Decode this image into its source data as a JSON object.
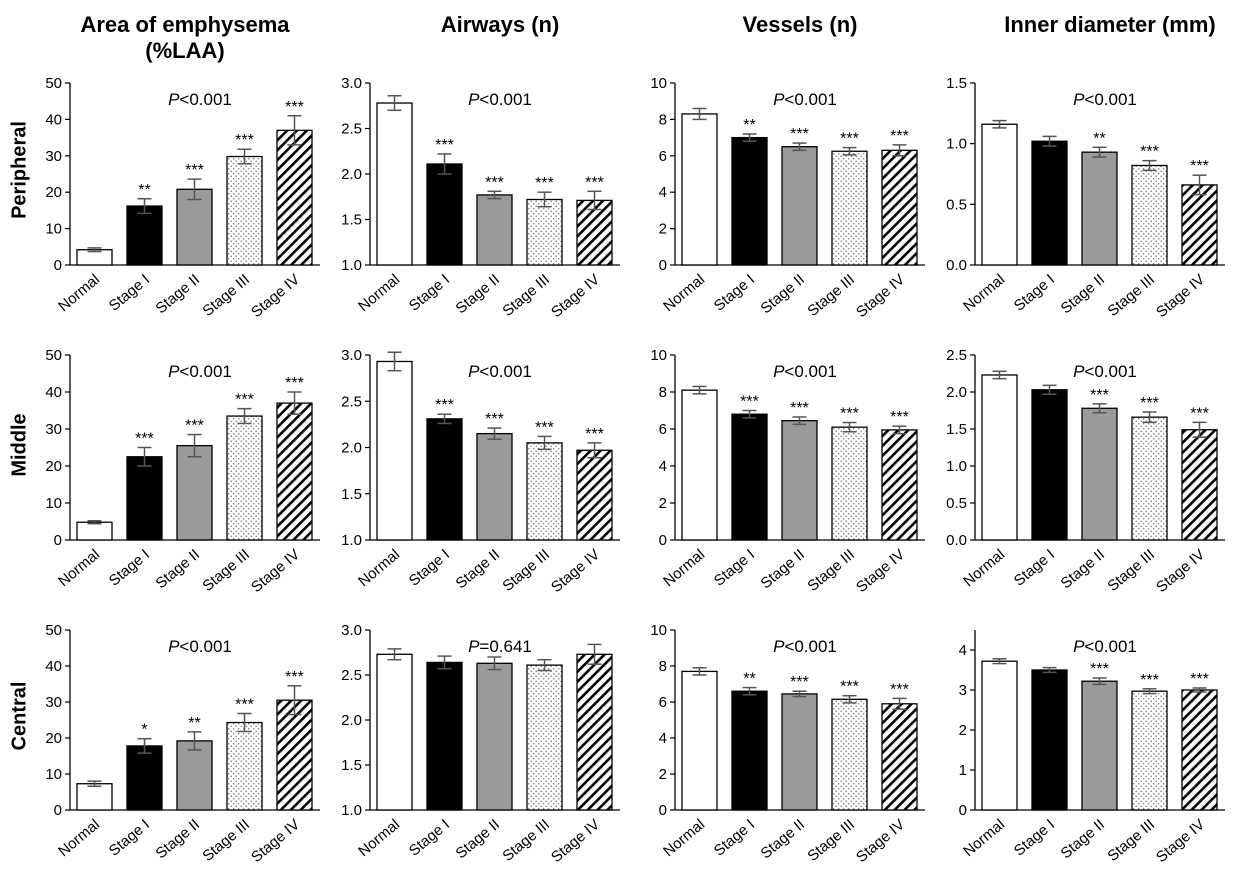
{
  "column_titles": [
    {
      "line1": "Area of emphysema",
      "line2": "(%LAA)"
    },
    {
      "line1": "Airways (n)",
      "line2": ""
    },
    {
      "line1": "Vessels (n)",
      "line2": ""
    },
    {
      "line1": "Inner diameter (mm)",
      "line2": ""
    }
  ],
  "row_labels": [
    "Peripheral",
    "Middle",
    "Central"
  ],
  "chart_data": [
    {
      "type": "bar",
      "region": "Peripheral",
      "measure": "Area of emphysema (%LAA)",
      "categories": [
        "Normal",
        "Stage I",
        "Stage II",
        "Stage III",
        "Stage IV"
      ],
      "values": [
        4.2,
        16.2,
        20.8,
        29.8,
        37.0
      ],
      "errors": [
        0.5,
        2.0,
        2.8,
        2.0,
        4.0
      ],
      "significance": [
        "",
        "**",
        "***",
        "***",
        "***"
      ],
      "p_value": "P<0.001",
      "ylim": [
        0,
        50
      ],
      "yticks": [
        0,
        10,
        20,
        30,
        40,
        50
      ],
      "ytick_labels": [
        "0",
        "10",
        "20",
        "30",
        "40",
        "50"
      ]
    },
    {
      "type": "bar",
      "region": "Peripheral",
      "measure": "Airways (n)",
      "categories": [
        "Normal",
        "Stage I",
        "Stage II",
        "Stage III",
        "Stage IV"
      ],
      "values": [
        2.78,
        2.11,
        1.77,
        1.72,
        1.71
      ],
      "errors": [
        0.08,
        0.11,
        0.04,
        0.08,
        0.1
      ],
      "significance": [
        "",
        "***",
        "***",
        "***",
        "***"
      ],
      "p_value": "P<0.001",
      "ylim": [
        1.0,
        3.0
      ],
      "yticks": [
        1.0,
        1.5,
        2.0,
        2.5,
        3.0
      ],
      "ytick_labels": [
        "1.0",
        "1.5",
        "2.0",
        "2.5",
        "3.0"
      ]
    },
    {
      "type": "bar",
      "region": "Peripheral",
      "measure": "Vessels (n)",
      "categories": [
        "Normal",
        "Stage I",
        "Stage II",
        "Stage III",
        "Stage IV"
      ],
      "values": [
        8.3,
        7.0,
        6.5,
        6.25,
        6.3
      ],
      "errors": [
        0.3,
        0.2,
        0.2,
        0.2,
        0.3
      ],
      "significance": [
        "",
        "**",
        "***",
        "***",
        "***"
      ],
      "p_value": "P<0.001",
      "ylim": [
        0,
        10
      ],
      "yticks": [
        0,
        2,
        4,
        6,
        8,
        10
      ],
      "ytick_labels": [
        "0",
        "2",
        "4",
        "6",
        "8",
        "10"
      ]
    },
    {
      "type": "bar",
      "region": "Peripheral",
      "measure": "Inner diameter (mm)",
      "categories": [
        "Normal",
        "Stage I",
        "Stage II",
        "Stage III",
        "Stage IV"
      ],
      "values": [
        1.16,
        1.02,
        0.93,
        0.82,
        0.66
      ],
      "errors": [
        0.03,
        0.04,
        0.04,
        0.04,
        0.08
      ],
      "significance": [
        "",
        "",
        "**",
        "***",
        "***"
      ],
      "p_value": "P<0.001",
      "ylim": [
        0,
        1.5
      ],
      "yticks": [
        0,
        0.5,
        1.0,
        1.5
      ],
      "ytick_labels": [
        "0.0",
        "0.5",
        "1.0",
        "1.5"
      ]
    },
    {
      "type": "bar",
      "region": "Middle",
      "measure": "Area of emphysema (%LAA)",
      "categories": [
        "Normal",
        "Stage I",
        "Stage II",
        "Stage III",
        "Stage IV"
      ],
      "values": [
        4.8,
        22.5,
        25.5,
        33.5,
        37.0
      ],
      "errors": [
        0.4,
        2.5,
        3.0,
        2.0,
        3.0
      ],
      "significance": [
        "",
        "***",
        "***",
        "***",
        "***"
      ],
      "p_value": "P<0.001",
      "ylim": [
        0,
        50
      ],
      "yticks": [
        0,
        10,
        20,
        30,
        40,
        50
      ],
      "ytick_labels": [
        "0",
        "10",
        "20",
        "30",
        "40",
        "50"
      ]
    },
    {
      "type": "bar",
      "region": "Middle",
      "measure": "Airways (n)",
      "categories": [
        "Normal",
        "Stage I",
        "Stage II",
        "Stage III",
        "Stage IV"
      ],
      "values": [
        2.93,
        2.31,
        2.15,
        2.05,
        1.97
      ],
      "errors": [
        0.1,
        0.05,
        0.06,
        0.07,
        0.08
      ],
      "significance": [
        "",
        "***",
        "***",
        "***",
        "***"
      ],
      "p_value": "P<0.001",
      "ylim": [
        1.0,
        3.0
      ],
      "yticks": [
        1.0,
        1.5,
        2.0,
        2.5,
        3.0
      ],
      "ytick_labels": [
        "1.0",
        "1.5",
        "2.0",
        "2.5",
        "3.0"
      ]
    },
    {
      "type": "bar",
      "region": "Middle",
      "measure": "Vessels (n)",
      "categories": [
        "Normal",
        "Stage I",
        "Stage II",
        "Stage III",
        "Stage IV"
      ],
      "values": [
        8.1,
        6.8,
        6.45,
        6.1,
        5.95
      ],
      "errors": [
        0.2,
        0.2,
        0.2,
        0.25,
        0.2
      ],
      "significance": [
        "",
        "***",
        "***",
        "***",
        "***"
      ],
      "p_value": "P<0.001",
      "ylim": [
        0,
        10
      ],
      "yticks": [
        0,
        2,
        4,
        6,
        8,
        10
      ],
      "ytick_labels": [
        "0",
        "2",
        "4",
        "6",
        "8",
        "10"
      ]
    },
    {
      "type": "bar",
      "region": "Middle",
      "measure": "Inner diameter (mm)",
      "categories": [
        "Normal",
        "Stage I",
        "Stage II",
        "Stage III",
        "Stage IV"
      ],
      "values": [
        2.23,
        2.03,
        1.78,
        1.66,
        1.49
      ],
      "errors": [
        0.05,
        0.06,
        0.06,
        0.07,
        0.1
      ],
      "significance": [
        "",
        "",
        "***",
        "***",
        "***"
      ],
      "p_value": "P<0.001",
      "ylim": [
        0,
        2.5
      ],
      "yticks": [
        0,
        0.5,
        1.0,
        1.5,
        2.0,
        2.5
      ],
      "ytick_labels": [
        "0.0",
        "0.5",
        "1.0",
        "1.5",
        "2.0",
        "2.5"
      ]
    },
    {
      "type": "bar",
      "region": "Central",
      "measure": "Area of emphysema (%LAA)",
      "categories": [
        "Normal",
        "Stage I",
        "Stage II",
        "Stage III",
        "Stage IV"
      ],
      "values": [
        7.3,
        17.8,
        19.2,
        24.3,
        30.5
      ],
      "errors": [
        0.7,
        2.0,
        2.5,
        2.5,
        4.0
      ],
      "significance": [
        "",
        "*",
        "**",
        "***",
        "***"
      ],
      "p_value": "P<0.001",
      "ylim": [
        0,
        50
      ],
      "yticks": [
        0,
        10,
        20,
        30,
        40,
        50
      ],
      "ytick_labels": [
        "0",
        "10",
        "20",
        "30",
        "40",
        "50"
      ]
    },
    {
      "type": "bar",
      "region": "Central",
      "measure": "Airways (n)",
      "categories": [
        "Normal",
        "Stage I",
        "Stage II",
        "Stage III",
        "Stage IV"
      ],
      "values": [
        2.73,
        2.64,
        2.63,
        2.61,
        2.73
      ],
      "errors": [
        0.06,
        0.07,
        0.07,
        0.06,
        0.11
      ],
      "significance": [
        "",
        "",
        "",
        "",
        ""
      ],
      "p_value": "P=0.641",
      "ylim": [
        1.0,
        3.0
      ],
      "yticks": [
        1.0,
        1.5,
        2.0,
        2.5,
        3.0
      ],
      "ytick_labels": [
        "1.0",
        "1.5",
        "2.0",
        "2.5",
        "3.0"
      ]
    },
    {
      "type": "bar",
      "region": "Central",
      "measure": "Vessels (n)",
      "categories": [
        "Normal",
        "Stage I",
        "Stage II",
        "Stage III",
        "Stage IV"
      ],
      "values": [
        7.7,
        6.6,
        6.45,
        6.15,
        5.9
      ],
      "errors": [
        0.2,
        0.2,
        0.15,
        0.2,
        0.3
      ],
      "significance": [
        "",
        "**",
        "***",
        "***",
        "***"
      ],
      "p_value": "P<0.001",
      "ylim": [
        0,
        10
      ],
      "yticks": [
        0,
        2,
        4,
        6,
        8,
        10
      ],
      "ytick_labels": [
        "0",
        "2",
        "4",
        "6",
        "8",
        "10"
      ]
    },
    {
      "type": "bar",
      "region": "Central",
      "measure": "Inner diameter (mm)",
      "categories": [
        "Normal",
        "Stage I",
        "Stage II",
        "Stage III",
        "Stage IV"
      ],
      "values": [
        3.72,
        3.5,
        3.22,
        2.97,
        3.0
      ],
      "errors": [
        0.06,
        0.06,
        0.08,
        0.06,
        0.05
      ],
      "significance": [
        "",
        "",
        "***",
        "***",
        "***"
      ],
      "p_value": "P<0.001",
      "ylim": [
        0,
        4.5
      ],
      "yticks": [
        0,
        1,
        2,
        3,
        4
      ],
      "ytick_labels": [
        "0",
        "1",
        "2",
        "3",
        "4"
      ]
    }
  ],
  "bar_styles": [
    {
      "fill": "#ffffff",
      "pattern": "none"
    },
    {
      "fill": "#000000",
      "pattern": "none"
    },
    {
      "fill": "#9a9a9a",
      "pattern": "none"
    },
    {
      "fill": "#ffffff",
      "pattern": "dots"
    },
    {
      "fill": "#ffffff",
      "pattern": "diagonal"
    }
  ],
  "colors": {
    "axis": "#000000",
    "errorbar": "#555555"
  }
}
